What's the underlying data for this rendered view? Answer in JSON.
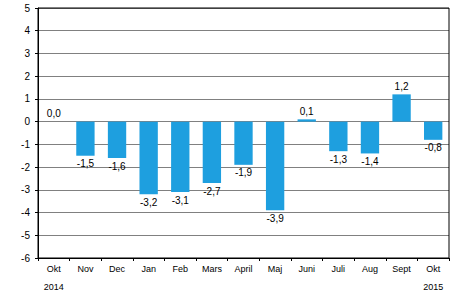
{
  "chart_data": {
    "type": "bar",
    "categories": [
      "Okt",
      "Nov",
      "Dec",
      "Jan",
      "Feb",
      "Mars",
      "April",
      "Maj",
      "Juni",
      "Juli",
      "Aug",
      "Sept",
      "Okt"
    ],
    "values": [
      0.0,
      -1.5,
      -1.6,
      -3.2,
      -3.1,
      -2.7,
      -1.9,
      -3.9,
      0.1,
      -1.3,
      -1.4,
      1.2,
      -0.8
    ],
    "value_labels": [
      "0,0",
      "-1,5",
      "-1,6",
      "-3,2",
      "-3,1",
      "-2,7",
      "-1,9",
      "-3,9",
      "0,1",
      "-1,3",
      "-1,4",
      "1,2",
      "-0,8"
    ],
    "annotations": [
      {
        "text": "2014",
        "index": 0
      },
      {
        "text": "2015",
        "index": 12
      }
    ],
    "color": "#1e9fdf",
    "ylim": [
      -6,
      5
    ],
    "yticks": [
      -6,
      -5,
      -4,
      -3,
      -2,
      -1,
      0,
      1,
      2,
      3,
      4,
      5
    ],
    "grid": true,
    "data_labels": true
  }
}
